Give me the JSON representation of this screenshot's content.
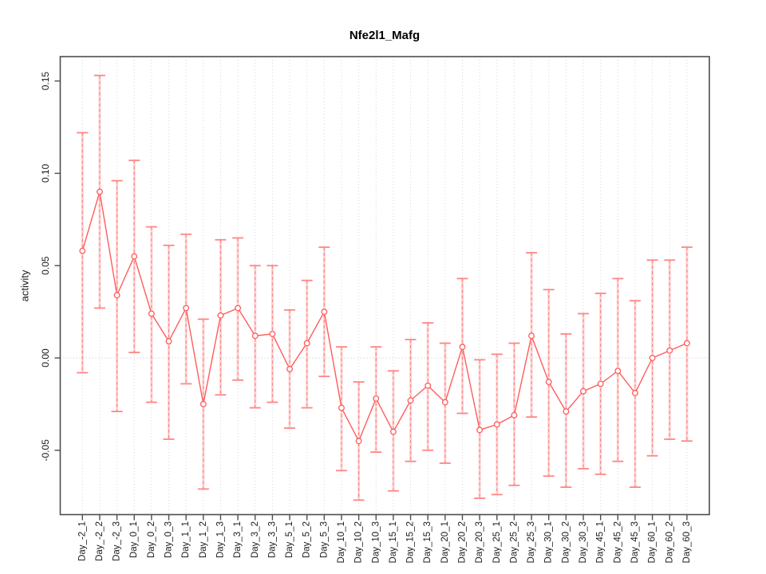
{
  "title": "Nfe2l1_Mafg",
  "ylabel": "activity",
  "chart_data": {
    "type": "line",
    "title": "Nfe2l1_Mafg",
    "xlabel": "",
    "ylabel": "activity",
    "legend": "none",
    "grid": "vertical dotted gridline at every category; dotted horizontal line at y=0",
    "ylim": [
      -0.085,
      0.163
    ],
    "yticks": [
      -0.05,
      0.0,
      0.05,
      0.1,
      0.15
    ],
    "ytick_labels": [
      "-0.05",
      "0.00",
      "0.05",
      "0.10",
      "0.15"
    ],
    "marker": "open-circle",
    "error_bar_style": "dashed vertical line with caps",
    "colors": {
      "series": "#ff5c5c",
      "error_bar": "#ff8585",
      "error_bar_pale": "#ffb3b3",
      "grid": "#d8d8d8",
      "zero_line": "#c4c4c4",
      "box": "#4d4d4d",
      "text": "#1a1a1a"
    },
    "categories": [
      "Day_-2_1",
      "Day_-2_2",
      "Day_-2_3",
      "Day_0_1",
      "Day_0_2",
      "Day_0_3",
      "Day_1_1",
      "Day_1_2",
      "Day_1_3",
      "Day_3_1",
      "Day_3_2",
      "Day_3_3",
      "Day_5_1",
      "Day_5_2",
      "Day_5_3",
      "Day_10_1",
      "Day_10_2",
      "Day_10_3",
      "Day_15_1",
      "Day_15_2",
      "Day_15_3",
      "Day_20_1",
      "Day_20_2",
      "Day_20_3",
      "Day_25_1",
      "Day_25_2",
      "Day_25_3",
      "Day_30_1",
      "Day_30_2",
      "Day_30_3",
      "Day_45_1",
      "Day_45_2",
      "Day_45_3",
      "Day_60_1",
      "Day_60_2",
      "Day_60_3"
    ],
    "values": [
      0.058,
      0.09,
      0.034,
      0.055,
      0.024,
      0.009,
      0.027,
      -0.025,
      0.023,
      0.027,
      0.012,
      0.013,
      -0.006,
      0.008,
      0.025,
      -0.027,
      -0.045,
      -0.022,
      -0.04,
      -0.023,
      -0.015,
      -0.024,
      0.006,
      -0.039,
      -0.036,
      -0.031,
      0.012,
      -0.013,
      -0.029,
      -0.018,
      -0.014,
      -0.007,
      -0.019,
      0.0,
      0.004,
      0.008
    ],
    "error_high": [
      0.122,
      0.153,
      0.096,
      0.107,
      0.071,
      0.061,
      0.067,
      0.021,
      0.064,
      0.065,
      0.05,
      0.05,
      0.026,
      0.042,
      0.06,
      0.006,
      -0.013,
      0.006,
      -0.007,
      0.01,
      0.019,
      0.008,
      0.043,
      -0.001,
      0.002,
      0.008,
      0.057,
      0.037,
      0.013,
      0.024,
      0.035,
      0.043,
      0.031,
      0.053,
      0.053,
      0.06
    ],
    "error_low": [
      -0.008,
      0.027,
      -0.029,
      0.003,
      -0.024,
      -0.044,
      -0.014,
      -0.071,
      -0.02,
      -0.012,
      -0.027,
      -0.024,
      -0.038,
      -0.027,
      -0.01,
      -0.061,
      -0.077,
      -0.051,
      -0.072,
      -0.056,
      -0.05,
      -0.057,
      -0.03,
      -0.076,
      -0.074,
      -0.069,
      -0.032,
      -0.064,
      -0.07,
      -0.06,
      -0.063,
      -0.056,
      -0.07,
      -0.053,
      -0.044,
      -0.045
    ]
  }
}
